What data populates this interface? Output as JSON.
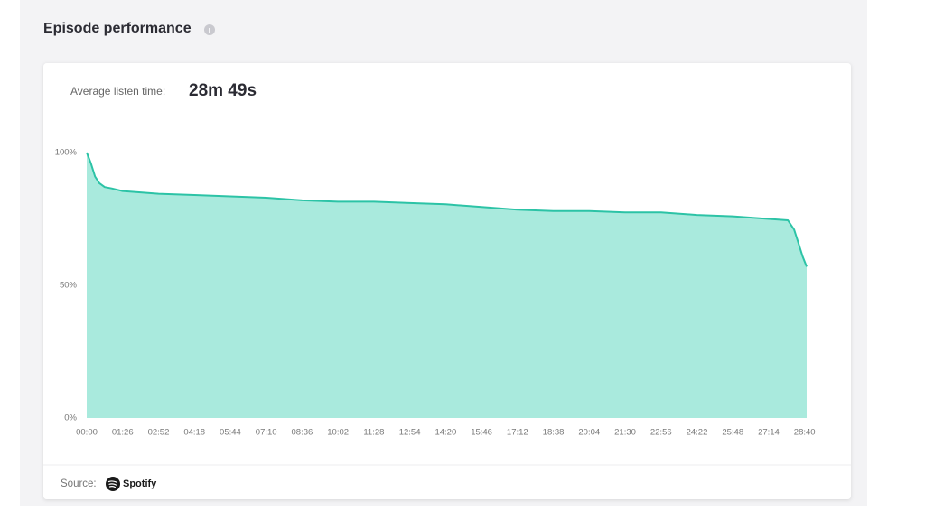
{
  "header": {
    "title": "Episode performance"
  },
  "summary": {
    "label": "Average listen time:",
    "value": "28m 49s"
  },
  "source": {
    "label": "Source:",
    "name": "Spotify"
  },
  "chart_data": {
    "type": "area",
    "x": [
      0,
      10,
      20,
      30,
      43,
      60,
      86,
      129,
      172,
      258,
      344,
      430,
      516,
      602,
      688,
      774,
      860,
      946,
      1032,
      1118,
      1204,
      1290,
      1376,
      1462,
      1548,
      1634,
      1680,
      1695,
      1705,
      1715,
      1725
    ],
    "values": [
      100,
      96,
      91,
      88.5,
      87,
      86.5,
      85.5,
      85,
      84.5,
      84,
      83.5,
      83,
      82,
      81.5,
      81.5,
      81,
      80.5,
      79.5,
      78.5,
      78,
      78,
      77.5,
      77.5,
      76.5,
      76,
      75,
      74.5,
      71,
      66,
      61,
      57
    ],
    "color": "#a9eadd",
    "line_color": "#2cc3a6",
    "xlim": [
      0,
      1725
    ],
    "xticks": [
      {
        "value": 0,
        "label": "00:00"
      },
      {
        "value": 86,
        "label": "01:26"
      },
      {
        "value": 172,
        "label": "02:52"
      },
      {
        "value": 258,
        "label": "04:18"
      },
      {
        "value": 344,
        "label": "05:44"
      },
      {
        "value": 430,
        "label": "07:10"
      },
      {
        "value": 516,
        "label": "08:36"
      },
      {
        "value": 602,
        "label": "10:02"
      },
      {
        "value": 688,
        "label": "11:28"
      },
      {
        "value": 774,
        "label": "12:54"
      },
      {
        "value": 860,
        "label": "14:20"
      },
      {
        "value": 946,
        "label": "15:46"
      },
      {
        "value": 1032,
        "label": "17:12"
      },
      {
        "value": 1118,
        "label": "18:38"
      },
      {
        "value": 1204,
        "label": "20:04"
      },
      {
        "value": 1290,
        "label": "21:30"
      },
      {
        "value": 1376,
        "label": "22:56"
      },
      {
        "value": 1462,
        "label": "24:22"
      },
      {
        "value": 1548,
        "label": "25:48"
      },
      {
        "value": 1634,
        "label": "27:14"
      },
      {
        "value": 1720,
        "label": "28:40"
      }
    ],
    "ylim": [
      0,
      100
    ],
    "yticks": [
      {
        "value": 0,
        "label": "0%"
      },
      {
        "value": 50,
        "label": "50%"
      },
      {
        "value": 100,
        "label": "100%"
      }
    ],
    "grid": false
  }
}
